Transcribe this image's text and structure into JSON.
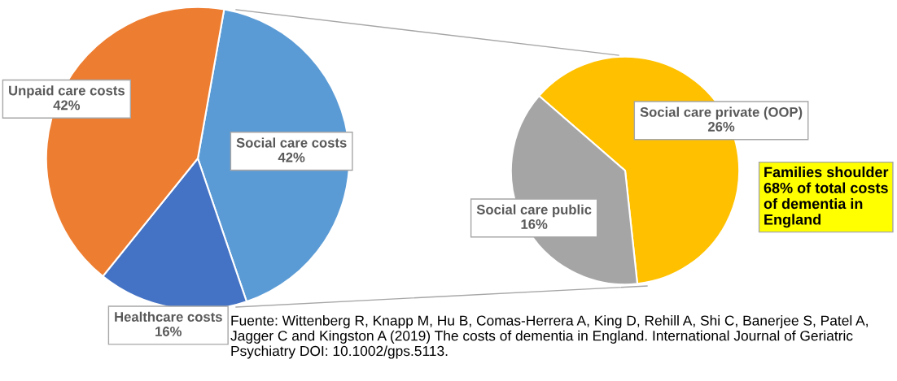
{
  "chart_data": [
    {
      "type": "pie",
      "categories": [
        "Social care costs",
        "Healthcare costs",
        "Unpaid care costs"
      ],
      "values": [
        42,
        16,
        42
      ],
      "colors": [
        "#5b9bd5",
        "#4472c4",
        "#ed7d31"
      ],
      "value_labels": [
        "42%",
        "16%",
        "42%"
      ]
    },
    {
      "type": "pie",
      "categories": [
        "Social care private (OOP)",
        "Social care public"
      ],
      "values": [
        26,
        16
      ],
      "colors": [
        "#ffc000",
        "#a5a5a5"
      ],
      "value_labels": [
        "26%",
        "16%"
      ],
      "annotations": [
        "Families shoulder 68% of total costs of dementia in England",
        "Fuente: Wittenberg R, Knapp M, Hu B, Comas-Herrera A, King D, Rehill A, Shi C, Banerjee S, Patel A, Jagger C and Kingston A (2019) The costs of dementia in England. International Journal of Geriatric Psychiatry DOI: 10.1002/gps.5113."
      ]
    }
  ]
}
